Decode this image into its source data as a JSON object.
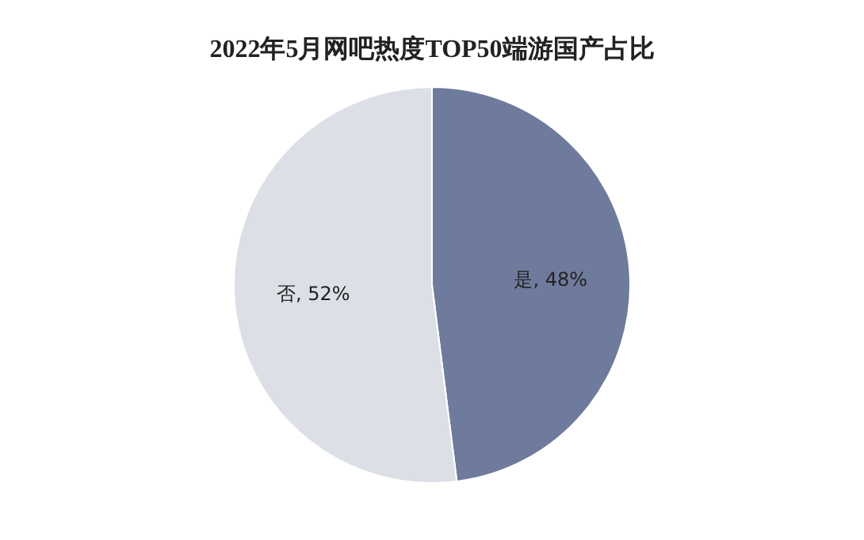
{
  "chart_data": {
    "type": "pie",
    "title": "2022年5月网吧热度TOP50端游国产占比",
    "categories": [
      "是",
      "否"
    ],
    "values": [
      48,
      52
    ],
    "colors": [
      "#6e7b9c",
      "#dcdfe6"
    ],
    "value_labels": [
      ", 48%",
      ", 52%"
    ]
  }
}
